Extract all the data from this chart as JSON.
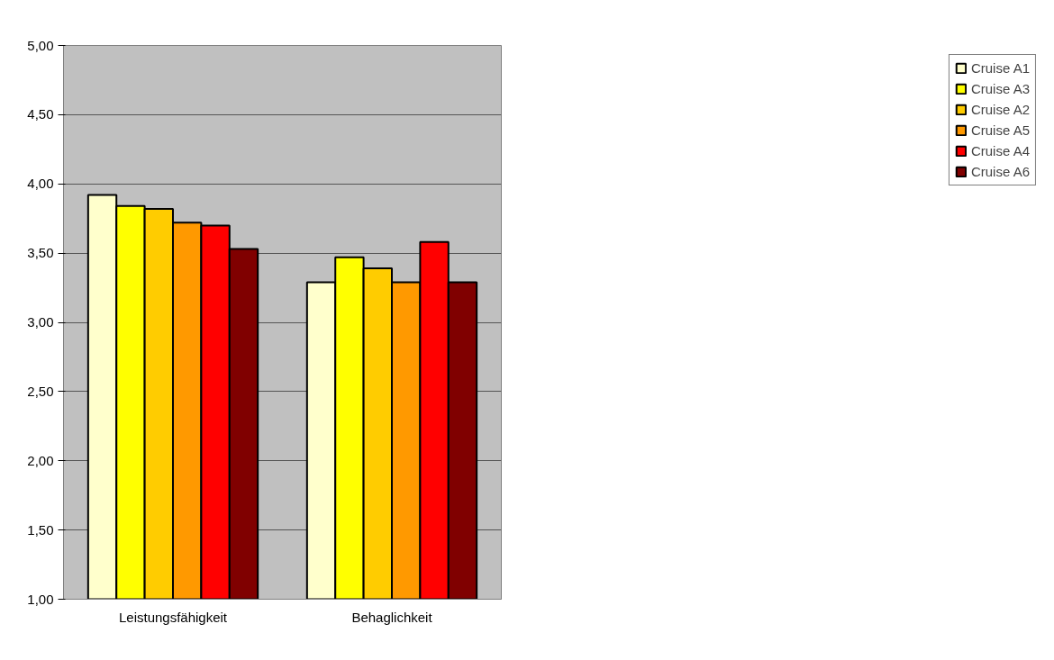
{
  "chart_data": {
    "type": "bar",
    "categories": [
      "Leistungsfähigkeit",
      "Behaglichkeit"
    ],
    "series": [
      {
        "name": "Cruise A1",
        "color": "#ffffcc",
        "values": [
          3.92,
          3.29
        ]
      },
      {
        "name": "Cruise A3",
        "color": "#ffff00",
        "values": [
          3.84,
          3.47
        ]
      },
      {
        "name": "Cruise A2",
        "color": "#ffcc00",
        "values": [
          3.82,
          3.39
        ]
      },
      {
        "name": "Cruise A5",
        "color": "#ff9900",
        "values": [
          3.72,
          3.29
        ]
      },
      {
        "name": "Cruise A4",
        "color": "#ff0000",
        "values": [
          3.7,
          3.58
        ]
      },
      {
        "name": "Cruise A6",
        "color": "#800000",
        "values": [
          3.53,
          3.29
        ]
      }
    ],
    "ylim": [
      1,
      5
    ],
    "yticks": [
      {
        "value": 1,
        "label": "1,00"
      },
      {
        "value": 1.5,
        "label": "1,50"
      },
      {
        "value": 2,
        "label": "2,00"
      },
      {
        "value": 2.5,
        "label": "2,50"
      },
      {
        "value": 3,
        "label": "3,00"
      },
      {
        "value": 3.5,
        "label": "3,50"
      },
      {
        "value": 4,
        "label": "4,00"
      },
      {
        "value": 4.5,
        "label": "4,50"
      },
      {
        "value": 5,
        "label": "5,00"
      }
    ],
    "grid": "y",
    "legend": "right"
  }
}
